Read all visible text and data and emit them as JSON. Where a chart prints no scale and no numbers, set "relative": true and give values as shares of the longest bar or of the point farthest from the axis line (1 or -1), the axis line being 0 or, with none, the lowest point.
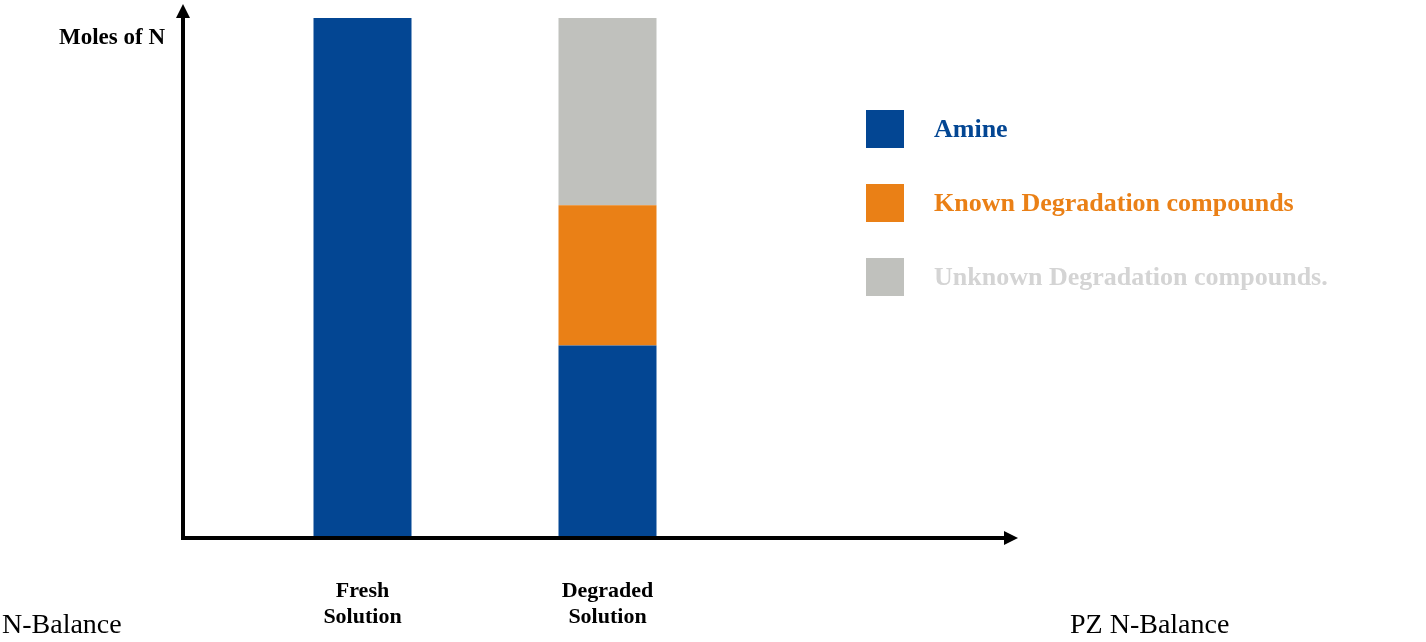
{
  "chart_data": {
    "type": "bar",
    "stacked": true,
    "relative": true,
    "ylabel": "Moles of N",
    "categories": [
      "Fresh Solution",
      "Degraded Solution"
    ],
    "series": [
      {
        "name": "Amine",
        "color": "#034693",
        "values": [
          1,
          0.37
        ]
      },
      {
        "name": "Known Degradation compounds",
        "color": "#ea8016",
        "values": [
          0,
          0.27
        ]
      },
      {
        "name": "Unknown Degradation compounds.",
        "color": "#c0c1bd",
        "values": [
          0,
          0.36
        ]
      }
    ],
    "legend": "right",
    "grid": false,
    "annotations": [
      "N-Balance",
      "PZ N-Balance"
    ]
  }
}
